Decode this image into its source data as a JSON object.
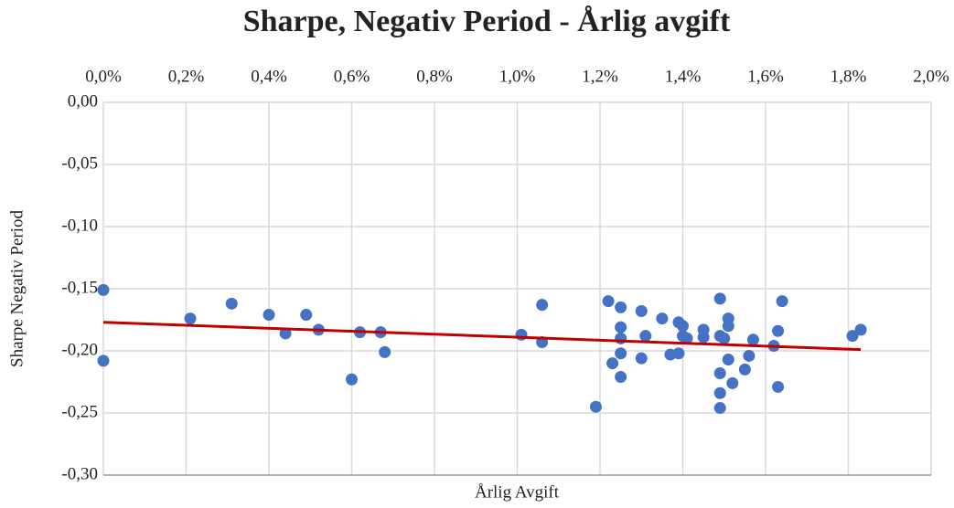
{
  "chart_data": {
    "type": "scatter",
    "title": "Sharpe, Negativ Period - Årlig avgift",
    "x_label": "Årlig Avgift",
    "y_label": "Sharpe Negativ Period",
    "x": [
      0,
      0,
      0.21,
      0.31,
      0.4,
      0.44,
      0.49,
      0.52,
      0.6,
      0.62,
      0.67,
      0.68,
      1.01,
      1.06,
      1.06,
      1.19,
      1.22,
      1.23,
      1.25,
      1.25,
      1.25,
      1.25,
      1.25,
      1.3,
      1.3,
      1.31,
      1.35,
      1.37,
      1.39,
      1.39,
      1.4,
      1.4,
      1.41,
      1.45,
      1.45,
      1.49,
      1.49,
      1.49,
      1.49,
      1.49,
      1.5,
      1.51,
      1.51,
      1.51,
      1.52,
      1.55,
      1.56,
      1.57,
      1.62,
      1.63,
      1.63,
      1.64,
      1.81,
      1.83
    ],
    "values": [
      -0.151,
      -0.208,
      -0.174,
      -0.162,
      -0.171,
      -0.186,
      -0.171,
      -0.183,
      -0.223,
      -0.185,
      -0.185,
      -0.201,
      -0.187,
      -0.193,
      -0.163,
      -0.245,
      -0.16,
      -0.21,
      -0.165,
      -0.181,
      -0.19,
      -0.202,
      -0.221,
      -0.168,
      -0.206,
      -0.188,
      -0.174,
      -0.203,
      -0.177,
      -0.202,
      -0.18,
      -0.188,
      -0.19,
      -0.183,
      -0.189,
      -0.158,
      -0.188,
      -0.218,
      -0.234,
      -0.246,
      -0.19,
      -0.18,
      -0.174,
      -0.207,
      -0.226,
      -0.215,
      -0.204,
      -0.191,
      -0.196,
      -0.184,
      -0.229,
      -0.16,
      -0.188,
      -0.183
    ],
    "color": "#4472c4",
    "trendline": {
      "x": [
        0,
        1.83
      ],
      "y": [
        -0.177,
        -0.199
      ],
      "color": "#c00000"
    },
    "xlim": [
      0,
      2.0
    ],
    "xticks": [
      {
        "value": 0,
        "label": "0,0%"
      },
      {
        "value": 0.2,
        "label": "0,2%"
      },
      {
        "value": 0.4,
        "label": "0,4%"
      },
      {
        "value": 0.6,
        "label": "0,6%"
      },
      {
        "value": 0.8,
        "label": "0,8%"
      },
      {
        "value": 1.0,
        "label": "1,0%"
      },
      {
        "value": 1.2,
        "label": "1,2%"
      },
      {
        "value": 1.4,
        "label": "1,4%"
      },
      {
        "value": 1.6,
        "label": "1,6%"
      },
      {
        "value": 1.8,
        "label": "1,8%"
      },
      {
        "value": 2.0,
        "label": "2,0%"
      }
    ],
    "ylim": [
      -0.3,
      0
    ],
    "yticks": [
      {
        "value": 0,
        "label": "0,00"
      },
      {
        "value": -0.05,
        "label": "-0,05"
      },
      {
        "value": -0.1,
        "label": "-0,10"
      },
      {
        "value": -0.15,
        "label": "-0,15"
      },
      {
        "value": -0.2,
        "label": "-0,20"
      },
      {
        "value": -0.25,
        "label": "-0,25"
      },
      {
        "value": -0.3,
        "label": "-0,30"
      }
    ],
    "grid": true
  }
}
